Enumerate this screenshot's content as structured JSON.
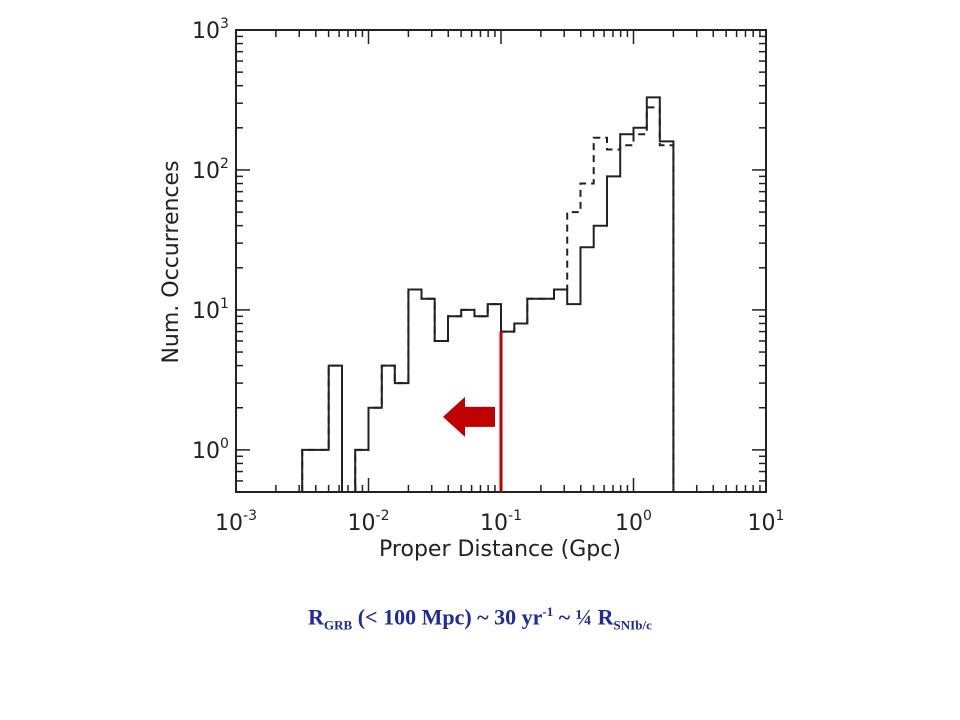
{
  "chart_data": {
    "type": "histogram",
    "x_scale": "log",
    "y_scale": "log",
    "xlabel": "Proper Distance (Gpc)",
    "ylabel": "Num. Occurrences",
    "xlim": [
      0.001,
      10
    ],
    "ylim": [
      0.5,
      1000
    ],
    "x_ticks": [
      {
        "value": 0.001,
        "base": "10",
        "exp": "-3"
      },
      {
        "value": 0.01,
        "base": "10",
        "exp": "-2"
      },
      {
        "value": 0.1,
        "base": "10",
        "exp": "-1"
      },
      {
        "value": 1,
        "base": "10",
        "exp": "0"
      },
      {
        "value": 10,
        "base": "10",
        "exp": "1"
      }
    ],
    "y_ticks": [
      {
        "value": 1,
        "base": "10",
        "exp": "0"
      },
      {
        "value": 10,
        "base": "10",
        "exp": "1"
      },
      {
        "value": 100,
        "base": "10",
        "exp": "2"
      },
      {
        "value": 1000,
        "base": "10",
        "exp": "3"
      }
    ],
    "bin_edges": [
      0.00316,
      0.00398,
      0.00501,
      0.00631,
      0.00794,
      0.01,
      0.0126,
      0.0158,
      0.02,
      0.0251,
      0.0316,
      0.0398,
      0.0501,
      0.0631,
      0.0794,
      0.1,
      0.126,
      0.158,
      0.2,
      0.251,
      0.316,
      0.398,
      0.501,
      0.631,
      0.794,
      1.0,
      1.26,
      1.58,
      2.0
    ],
    "series": [
      {
        "style": "solid",
        "values": [
          1,
          1,
          4,
          0,
          1,
          2,
          4,
          3,
          14,
          12,
          6,
          9,
          10,
          9,
          11,
          7,
          8,
          12,
          12,
          14,
          11,
          28,
          40,
          90,
          180,
          200,
          330,
          160
        ]
      },
      {
        "style": "dashed",
        "values": [
          1,
          1,
          4,
          0,
          1,
          2,
          4,
          3,
          14,
          12,
          6,
          9,
          10,
          9,
          11,
          7,
          8,
          12,
          12,
          14,
          50,
          80,
          170,
          140,
          150,
          180,
          280,
          150
        ]
      }
    ],
    "annotations": [
      {
        "type": "vertical_line",
        "x": 0.1,
        "y_range": [
          0.5,
          7
        ],
        "color": "#c00000"
      },
      {
        "type": "arrow",
        "direction": "left",
        "color": "#c00000"
      }
    ],
    "colors": {
      "lines": "#222222",
      "annotation": "#c00000"
    }
  },
  "caption": {
    "r1": "R",
    "sub1": "GRB",
    "middle": " (< 100 Mpc) ~ 30 yr",
    "sup1": "-1",
    "tail": "  ~  ¼ R",
    "sub2": "SNIb/c",
    "color": "#1f2a9c"
  }
}
